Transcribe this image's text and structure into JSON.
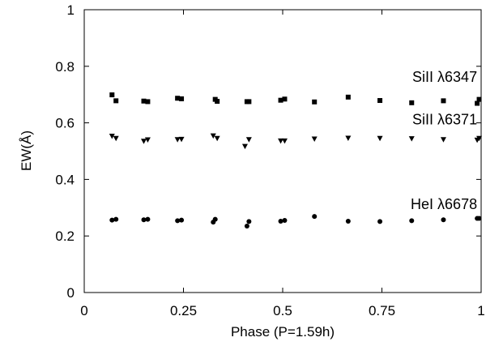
{
  "chart_data": {
    "type": "scatter",
    "title": "",
    "xlabel": "Phase (P=1.59h)",
    "ylabel": "EW(Å)",
    "xlim": [
      0,
      1
    ],
    "ylim": [
      0,
      1
    ],
    "xticks": [
      0,
      0.25,
      0.5,
      0.75,
      1
    ],
    "xtick_labels": [
      "0",
      "0.25",
      "0.5",
      "0.75",
      "1"
    ],
    "yticks": [
      0,
      0.2,
      0.4,
      0.6,
      0.8,
      1
    ],
    "ytick_labels": [
      "0",
      "0.2",
      "0.4",
      "0.6",
      "0.8",
      "1"
    ],
    "grid": false,
    "legend": "none",
    "series": [
      {
        "name": "SiII λ6347",
        "marker": "square",
        "color": "#000000",
        "x": [
          0.07,
          0.08,
          0.15,
          0.16,
          0.235,
          0.245,
          0.33,
          0.335,
          0.41,
          0.415,
          0.495,
          0.505,
          0.58,
          0.665,
          0.745,
          0.825,
          0.905,
          0.99,
          0.995
        ],
        "y": [
          0.699,
          0.678,
          0.677,
          0.675,
          0.687,
          0.685,
          0.683,
          0.676,
          0.675,
          0.675,
          0.68,
          0.684,
          0.674,
          0.691,
          0.679,
          0.671,
          0.678,
          0.669,
          0.683
        ]
      },
      {
        "name": "SiII λ6371",
        "marker": "triangle-down",
        "color": "#000000",
        "x": [
          0.07,
          0.08,
          0.15,
          0.16,
          0.235,
          0.245,
          0.325,
          0.335,
          0.405,
          0.415,
          0.495,
          0.505,
          0.58,
          0.665,
          0.745,
          0.825,
          0.905,
          0.99,
          0.995
        ],
        "y": [
          0.553,
          0.545,
          0.535,
          0.54,
          0.541,
          0.542,
          0.554,
          0.545,
          0.517,
          0.541,
          0.536,
          0.536,
          0.543,
          0.546,
          0.545,
          0.544,
          0.541,
          0.539,
          0.545
        ]
      },
      {
        "name": "HeI λ6678",
        "marker": "circle",
        "color": "#000000",
        "x": [
          0.07,
          0.08,
          0.15,
          0.16,
          0.235,
          0.245,
          0.325,
          0.33,
          0.41,
          0.415,
          0.495,
          0.505,
          0.58,
          0.665,
          0.745,
          0.825,
          0.905,
          0.99,
          0.995
        ],
        "y": [
          0.256,
          0.259,
          0.257,
          0.259,
          0.254,
          0.256,
          0.249,
          0.259,
          0.235,
          0.251,
          0.252,
          0.255,
          0.269,
          0.252,
          0.251,
          0.254,
          0.257,
          0.262,
          0.262
        ]
      }
    ],
    "annotations": [
      {
        "text": "SiII λ6347",
        "x": 0.99,
        "y": 0.745
      },
      {
        "text": "SiII λ6371",
        "x": 0.99,
        "y": 0.595
      },
      {
        "text": "HeI λ6678",
        "x": 0.99,
        "y": 0.295
      }
    ]
  }
}
